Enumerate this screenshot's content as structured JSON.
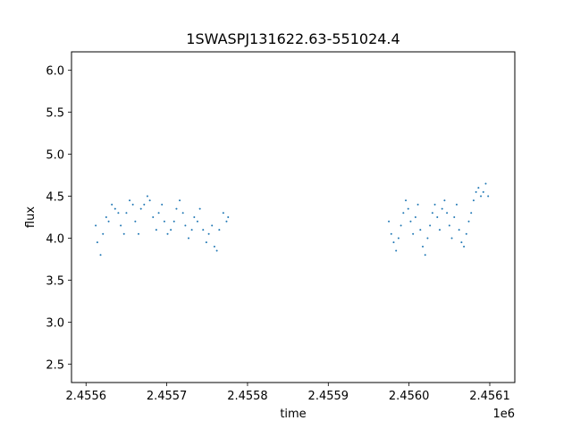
{
  "chart_data": {
    "type": "scatter",
    "title": "1SWASPJ131622.63-551024.4",
    "xlabel": "time",
    "ylabel": "flux",
    "x_offset_label": "1e6",
    "xlim": [
      2455582.0,
      2456131.0
    ],
    "ylim": [
      2.28,
      6.22
    ],
    "x_ticks": [
      {
        "value": 2455600,
        "label": "2.4556"
      },
      {
        "value": 2455700,
        "label": "2.4557"
      },
      {
        "value": 2455800,
        "label": "2.4558"
      },
      {
        "value": 2455900,
        "label": "2.4559"
      },
      {
        "value": 2456000,
        "label": "2.4560"
      },
      {
        "value": 2456100,
        "label": "2.4561"
      }
    ],
    "y_ticks": [
      {
        "value": 2.5,
        "label": "2.5"
      },
      {
        "value": 3.0,
        "label": "3.0"
      },
      {
        "value": 3.5,
        "label": "3.5"
      },
      {
        "value": 4.0,
        "label": "4.0"
      },
      {
        "value": 4.5,
        "label": "4.5"
      },
      {
        "value": 5.0,
        "label": "5.0"
      },
      {
        "value": 5.5,
        "label": "5.5"
      },
      {
        "value": 6.0,
        "label": "6.0"
      }
    ],
    "grid": false,
    "marker_color": "#1f77b4",
    "series": [
      {
        "x": [
          2455612,
          2455614,
          2455618,
          2455621,
          2455625,
          2455628,
          2455632,
          2455636,
          2455640,
          2455643,
          2455647,
          2455650,
          2455654,
          2455658,
          2455661,
          2455665,
          2455668,
          2455672,
          2455676,
          2455679,
          2455683,
          2455687,
          2455690,
          2455694,
          2455697,
          2455701,
          2455705,
          2455709,
          2455712,
          2455716,
          2455720,
          2455723,
          2455727,
          2455731,
          2455734,
          2455738,
          2455741,
          2455745,
          2455749,
          2455752,
          2455756,
          2455759,
          2455762,
          2455765,
          2455770,
          2455774,
          2455776
        ],
        "y": [
          4.15,
          3.95,
          3.8,
          4.05,
          4.25,
          4.2,
          4.4,
          4.35,
          4.3,
          4.15,
          4.05,
          4.3,
          4.45,
          4.4,
          4.2,
          4.05,
          4.35,
          4.4,
          4.5,
          4.45,
          4.25,
          4.1,
          4.3,
          4.4,
          4.2,
          4.05,
          4.1,
          4.2,
          4.35,
          4.45,
          4.3,
          4.15,
          4.0,
          4.1,
          4.25,
          4.2,
          4.35,
          4.1,
          3.95,
          4.05,
          4.15,
          3.9,
          3.85,
          4.1,
          4.3,
          4.2,
          4.25
        ]
      },
      {
        "x": [
          2455975,
          2455978,
          2455981,
          2455984,
          2455987,
          2455990,
          2455993,
          2455996,
          2455999,
          2456002,
          2456005,
          2456008,
          2456011,
          2456014,
          2456017,
          2456020,
          2456023,
          2456026,
          2456029,
          2456032,
          2456035,
          2456038,
          2456041,
          2456044,
          2456047,
          2456050,
          2456053,
          2456056,
          2456059,
          2456062,
          2456065,
          2456068,
          2456071,
          2456074,
          2456077,
          2456080,
          2456083,
          2456086,
          2456089,
          2456092,
          2456095,
          2456098
        ],
        "y": [
          4.2,
          4.05,
          3.95,
          3.85,
          4.0,
          4.15,
          4.3,
          4.45,
          4.35,
          4.2,
          4.05,
          4.25,
          4.4,
          4.1,
          3.9,
          3.8,
          4.0,
          4.15,
          4.3,
          4.4,
          4.25,
          4.1,
          4.35,
          4.45,
          4.3,
          4.15,
          4.0,
          4.25,
          4.4,
          4.1,
          3.95,
          3.9,
          4.05,
          4.2,
          4.3,
          4.45,
          4.55,
          4.6,
          4.5,
          4.55,
          4.65,
          4.5
        ]
      }
    ]
  }
}
